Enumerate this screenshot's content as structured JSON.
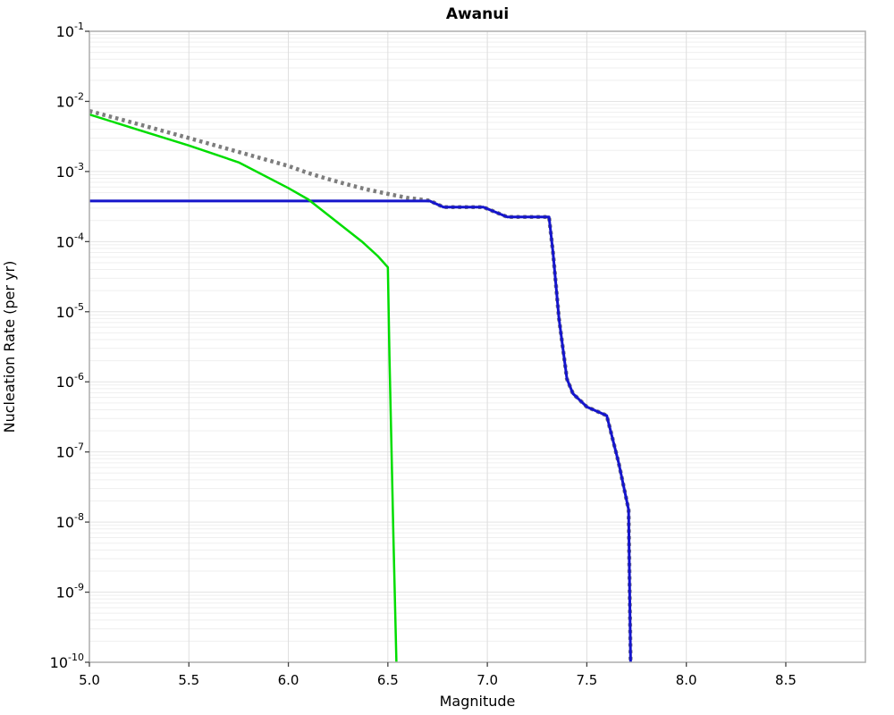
{
  "chart_data": {
    "type": "line",
    "title": "Awanui",
    "xlabel": "Magnitude",
    "ylabel": "Nucleation Rate (per yr)",
    "x_axis": {
      "min": 5.0,
      "max": 8.9,
      "tick_values": [
        5.0,
        5.5,
        6.0,
        6.5,
        7.0,
        7.5,
        8.0,
        8.5
      ],
      "tick_labels": [
        "5.0",
        "5.5",
        "6.0",
        "6.5",
        "7.0",
        "7.5",
        "8.0",
        "8.5"
      ]
    },
    "y_axis": {
      "scale": "log",
      "min_exponent": -10,
      "max_exponent": -1,
      "tick_base": "10",
      "tick_exponents": [
        -1,
        -2,
        -3,
        -4,
        -5,
        -6,
        -7,
        -8,
        -9,
        -10
      ]
    },
    "grid": {
      "horizontal_major": true,
      "horizontal_log_minor": true,
      "vertical_major": true,
      "minor_color": "#efefef",
      "major_h_color": "#e4e4e4",
      "major_v_color": "#dedede",
      "border_color": "#aeaeae"
    },
    "legend": "none",
    "series": [
      {
        "name": "green-solid-curve",
        "color": "#00dd00",
        "style": "solid",
        "width": 2.5,
        "points": [
          [
            5.0,
            0.0065
          ],
          [
            5.25,
            0.0039
          ],
          [
            5.5,
            0.00235
          ],
          [
            5.75,
            0.00135
          ],
          [
            6.0,
            0.00058
          ],
          [
            6.1,
            0.0004
          ],
          [
            6.25,
            0.000185
          ],
          [
            6.37,
            0.0001
          ],
          [
            6.45,
            6.2e-05
          ],
          [
            6.5,
            4.3e-05
          ],
          [
            6.508,
            2.3e-06
          ],
          [
            6.518,
            1.2e-07
          ],
          [
            6.528,
            6e-09
          ],
          [
            6.543,
            1e-10
          ]
        ]
      },
      {
        "name": "gray-dotted-curve",
        "color": "#7d7d7d",
        "style": "dotted",
        "width": 4.5,
        "points": [
          [
            5.0,
            0.0073
          ],
          [
            5.25,
            0.0047
          ],
          [
            5.5,
            0.003
          ],
          [
            5.75,
            0.0019
          ],
          [
            6.0,
            0.0012
          ],
          [
            6.1,
            0.00095
          ],
          [
            6.2,
            0.00078
          ],
          [
            6.3,
            0.00065
          ],
          [
            6.4,
            0.00055
          ],
          [
            6.5,
            0.00048
          ],
          [
            6.6,
            0.00042
          ],
          [
            6.71,
            0.000385
          ],
          [
            6.78,
            0.00031
          ],
          [
            6.98,
            0.00031
          ],
          [
            7.1,
            0.000225
          ],
          [
            7.31,
            0.000225
          ],
          [
            7.33,
            7e-05
          ],
          [
            7.36,
            8e-06
          ],
          [
            7.4,
            1.1e-06
          ],
          [
            7.43,
            6.8e-07
          ],
          [
            7.5,
            4.4e-07
          ],
          [
            7.6,
            3.3e-07
          ],
          [
            7.66,
            7e-08
          ],
          [
            7.71,
            1.5e-08
          ],
          [
            7.715,
            1.2e-09
          ],
          [
            7.72,
            1e-10
          ]
        ]
      },
      {
        "name": "blue-solid-curve",
        "color": "#1515cc",
        "style": "solid",
        "width": 3,
        "points": [
          [
            5.0,
            0.00038
          ],
          [
            6.71,
            0.00038
          ],
          [
            6.78,
            0.00031
          ],
          [
            6.98,
            0.00031
          ],
          [
            7.1,
            0.000225
          ],
          [
            7.31,
            0.000225
          ],
          [
            7.33,
            7e-05
          ],
          [
            7.36,
            8e-06
          ],
          [
            7.4,
            1.1e-06
          ],
          [
            7.43,
            6.8e-07
          ],
          [
            7.5,
            4.4e-07
          ],
          [
            7.6,
            3.3e-07
          ],
          [
            7.66,
            7e-08
          ],
          [
            7.71,
            1.5e-08
          ],
          [
            7.715,
            1.2e-09
          ],
          [
            7.72,
            1e-10
          ]
        ]
      }
    ]
  }
}
